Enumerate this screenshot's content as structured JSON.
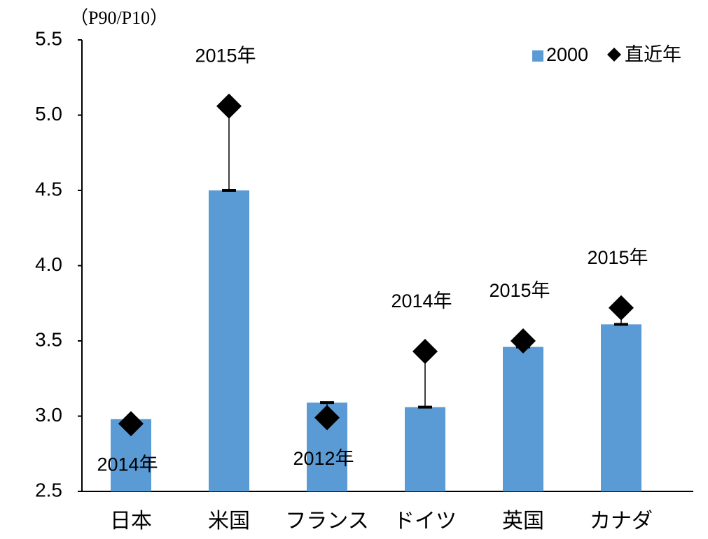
{
  "chart_data": {
    "type": "bar",
    "y_axis_label": "（P90/P10）",
    "categories": [
      "日本",
      "米国",
      "フランス",
      "ドイツ",
      "英国",
      "カナダ"
    ],
    "series": [
      {
        "name": "2000",
        "color": "#5b9bd5",
        "values": [
          2.98,
          4.5,
          3.09,
          3.06,
          3.46,
          3.61
        ]
      },
      {
        "name": "直近年",
        "color": "#000000",
        "marker": "diamond",
        "values": [
          2.95,
          5.06,
          2.99,
          3.43,
          3.5,
          3.72
        ]
      }
    ],
    "annotations": [
      "2014年",
      "2015年",
      "2012年",
      "2014年",
      "2015年",
      "2015年"
    ],
    "ylim": [
      2.5,
      5.5
    ],
    "yticks": [
      2.5,
      {
        "value": 3,
        "label": "3.0"
      },
      3.5,
      {
        "value": 4,
        "label": "4.0"
      },
      4.5,
      {
        "value": 5,
        "label": "5.0"
      },
      5.5
    ],
    "legend": "top-right"
  }
}
